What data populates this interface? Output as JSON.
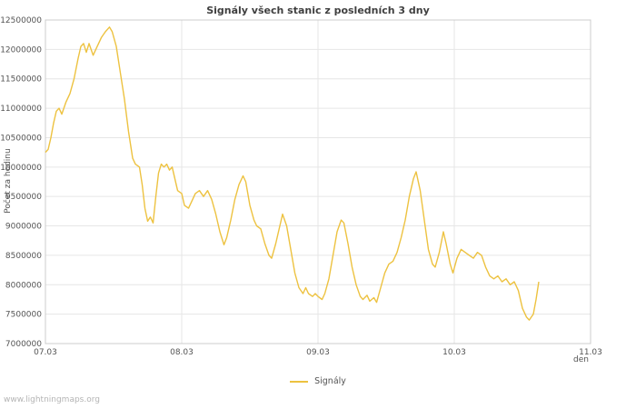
{
  "footer": {
    "watermark": "www.lightningmaps.org"
  },
  "chart_data": {
    "type": "line",
    "title": "Signály všech stanic z posledních 3 dny",
    "ylabel": "Počet za hodinu",
    "xlabel": "den",
    "ylim": [
      7000000,
      12500000
    ],
    "ytick_step": 500000,
    "xlim": [
      0,
      4
    ],
    "xticks": [
      {
        "value": 0,
        "label": "07.03"
      },
      {
        "value": 1,
        "label": "08.03"
      },
      {
        "value": 2,
        "label": "09.03"
      },
      {
        "value": 3,
        "label": "10.03"
      },
      {
        "value": 4,
        "label": "11.03"
      }
    ],
    "grid": true,
    "legend_position": "bottom-center",
    "colors": {
      "series": "#edc240",
      "grid": "#e6e6e6",
      "border": "#cccccc",
      "text": "#545454"
    },
    "series": [
      {
        "name": "Signály",
        "color": "#edc240",
        "x": [
          0.0,
          0.02,
          0.04,
          0.06,
          0.08,
          0.1,
          0.12,
          0.15,
          0.18,
          0.21,
          0.24,
          0.26,
          0.28,
          0.3,
          0.32,
          0.35,
          0.38,
          0.41,
          0.44,
          0.47,
          0.49,
          0.52,
          0.55,
          0.58,
          0.61,
          0.64,
          0.66,
          0.69,
          0.71,
          0.73,
          0.75,
          0.77,
          0.79,
          0.81,
          0.83,
          0.85,
          0.87,
          0.89,
          0.91,
          0.93,
          0.95,
          0.97,
          1.0,
          1.02,
          1.05,
          1.08,
          1.1,
          1.13,
          1.16,
          1.19,
          1.22,
          1.25,
          1.28,
          1.31,
          1.33,
          1.36,
          1.39,
          1.42,
          1.45,
          1.47,
          1.5,
          1.53,
          1.55,
          1.58,
          1.61,
          1.64,
          1.66,
          1.69,
          1.72,
          1.74,
          1.77,
          1.8,
          1.83,
          1.86,
          1.89,
          1.91,
          1.93,
          1.96,
          1.98,
          2.0,
          2.03,
          2.05,
          2.08,
          2.11,
          2.14,
          2.17,
          2.19,
          2.22,
          2.25,
          2.28,
          2.31,
          2.33,
          2.36,
          2.38,
          2.41,
          2.43,
          2.46,
          2.49,
          2.52,
          2.55,
          2.58,
          2.61,
          2.64,
          2.67,
          2.7,
          2.72,
          2.75,
          2.78,
          2.81,
          2.84,
          2.86,
          2.89,
          2.92,
          2.94,
          2.97,
          2.99,
          3.02,
          3.05,
          3.08,
          3.11,
          3.14,
          3.17,
          3.2,
          3.23,
          3.26,
          3.29,
          3.32,
          3.35,
          3.38,
          3.41,
          3.44,
          3.47,
          3.5,
          3.53,
          3.55,
          3.58,
          3.6,
          3.62
        ],
        "y": [
          10250000,
          10300000,
          10500000,
          10750000,
          10950000,
          11000000,
          10900000,
          11100000,
          11250000,
          11500000,
          11850000,
          12050000,
          12100000,
          11950000,
          12100000,
          11900000,
          12050000,
          12200000,
          12300000,
          12380000,
          12300000,
          12050000,
          11600000,
          11150000,
          10600000,
          10150000,
          10050000,
          10000000,
          9700000,
          9300000,
          9080000,
          9150000,
          9050000,
          9500000,
          9900000,
          10050000,
          10000000,
          10050000,
          9950000,
          10000000,
          9800000,
          9600000,
          9550000,
          9350000,
          9300000,
          9450000,
          9550000,
          9600000,
          9500000,
          9600000,
          9450000,
          9200000,
          8900000,
          8680000,
          8800000,
          9100000,
          9450000,
          9700000,
          9850000,
          9750000,
          9350000,
          9100000,
          9000000,
          8950000,
          8700000,
          8500000,
          8450000,
          8700000,
          9000000,
          9200000,
          9000000,
          8600000,
          8200000,
          7950000,
          7850000,
          7950000,
          7850000,
          7800000,
          7850000,
          7800000,
          7750000,
          7850000,
          8100000,
          8500000,
          8900000,
          9100000,
          9050000,
          8700000,
          8300000,
          8000000,
          7800000,
          7750000,
          7820000,
          7720000,
          7780000,
          7700000,
          7950000,
          8200000,
          8350000,
          8400000,
          8550000,
          8800000,
          9100000,
          9500000,
          9800000,
          9920000,
          9600000,
          9100000,
          8600000,
          8350000,
          8300000,
          8550000,
          8900000,
          8700000,
          8350000,
          8200000,
          8450000,
          8600000,
          8550000,
          8500000,
          8450000,
          8550000,
          8500000,
          8300000,
          8150000,
          8100000,
          8150000,
          8050000,
          8100000,
          8000000,
          8050000,
          7900000,
          7600000,
          7450000,
          7400000,
          7500000,
          7750000,
          8050000
        ]
      }
    ]
  }
}
